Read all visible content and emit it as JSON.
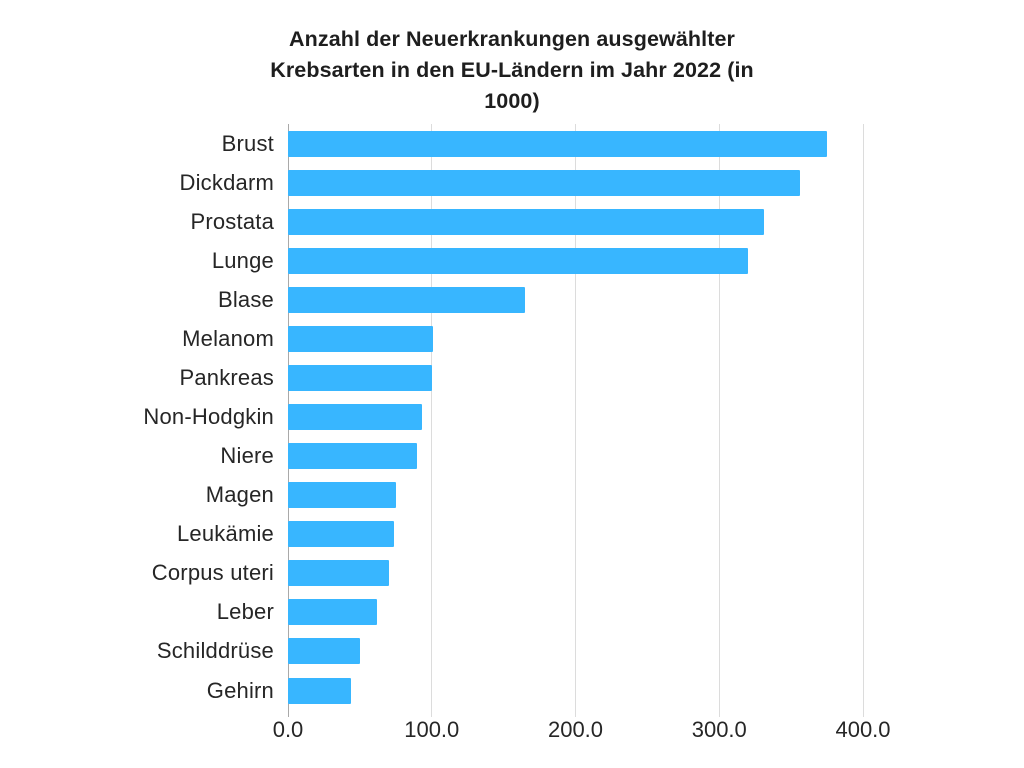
{
  "title": {
    "lines": [
      "Anzahl der Neuerkrankungen ausgewählter",
      "Krebsarten in den EU-Ländern im Jahr 2022 (in",
      "1000)"
    ]
  },
  "chart_data": {
    "type": "bar",
    "orientation": "horizontal",
    "title": "Anzahl der Neuerkrankungen ausgewählter Krebsarten in den EU-Ländern im Jahr 2022 (in 1000)",
    "categories": [
      "Brust",
      "Dickdarm",
      "Prostata",
      "Lunge",
      "Blase",
      "Melanom",
      "Pankreas",
      "Non-Hodgkin",
      "Niere",
      "Magen",
      "Leukämie",
      "Corpus uteri",
      "Leber",
      "Schilddrüse",
      "Gehirn"
    ],
    "values": [
      375,
      356,
      331,
      320,
      165,
      101,
      100,
      93,
      90,
      75,
      74,
      70,
      62,
      50,
      44
    ],
    "xlabel": "",
    "ylabel": "",
    "xlim": [
      0,
      430
    ],
    "x_ticks": [
      0,
      100,
      200,
      300,
      400
    ],
    "x_tick_labels": [
      "0.0",
      "100.0",
      "200.0",
      "300.0",
      "400.0"
    ],
    "grid": "vertical",
    "legend": "none"
  },
  "colors": {
    "bar": "#38B6FF",
    "gridline": "#dcdcdc",
    "axis_line": "#a9a9a9",
    "label_text": "#262626",
    "title_text": "#1e1e1e",
    "background": "#ffffff"
  }
}
